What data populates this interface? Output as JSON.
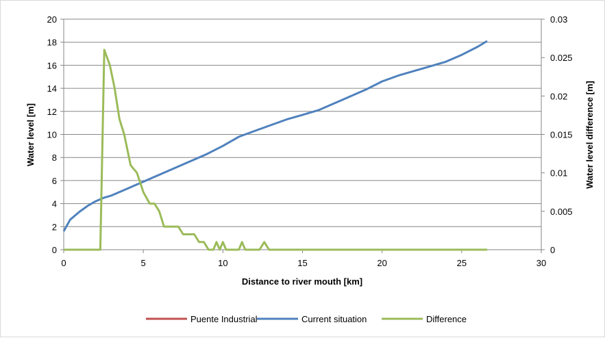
{
  "chart_data": {
    "type": "line",
    "title": "",
    "xlabel": "Distance to river mouth [km]",
    "ylabel": "Water level [m]",
    "y2label": "Water level difference [m]",
    "xlim": [
      0,
      30
    ],
    "ylim": [
      0,
      20
    ],
    "y2lim": [
      0,
      0.03
    ],
    "x_ticks": [
      0,
      5,
      10,
      15,
      20,
      25,
      30
    ],
    "y_ticks": [
      0,
      2,
      4,
      6,
      8,
      10,
      12,
      14,
      16,
      18,
      20
    ],
    "y2_ticks": [
      "0",
      "0.005",
      "0.01",
      "0.015",
      "0.02",
      "0.025",
      "0.03"
    ],
    "grid": "horizontal",
    "legend_position": "bottom",
    "series": [
      {
        "name": "Puente Industrial",
        "color": "#c0504d",
        "axis": "left",
        "x": [],
        "y": []
      },
      {
        "name": "Current situation",
        "color": "#4f81bd",
        "axis": "left",
        "x": [
          0,
          0.4,
          1,
          1.5,
          2,
          2.5,
          3,
          3.5,
          4,
          4.5,
          5,
          5.5,
          6,
          7,
          8,
          9,
          10,
          11,
          12,
          13,
          14,
          15,
          16,
          17,
          18,
          19,
          20,
          21,
          22,
          23,
          24,
          25,
          26,
          26.6
        ],
        "y": [
          1.6,
          2.6,
          3.3,
          3.8,
          4.2,
          4.5,
          4.7,
          5.0,
          5.3,
          5.6,
          5.9,
          6.2,
          6.5,
          7.1,
          7.7,
          8.3,
          9.0,
          9.8,
          10.3,
          10.8,
          11.3,
          11.7,
          12.1,
          12.7,
          13.3,
          13.9,
          14.6,
          15.1,
          15.5,
          15.9,
          16.3,
          16.9,
          17.6,
          18.1
        ]
      },
      {
        "name": "Difference",
        "color": "#9bbb59",
        "axis": "right",
        "x": [
          0,
          2.3,
          2.55,
          2.9,
          3.2,
          3.5,
          3.8,
          4.2,
          4.6,
          5.0,
          5.4,
          5.7,
          6.0,
          6.3,
          6.6,
          7.2,
          7.5,
          8.2,
          8.5,
          8.8,
          9.1,
          9.4,
          9.6,
          9.8,
          10.0,
          10.2,
          10.5,
          10.7,
          11.0,
          11.2,
          11.4,
          12.3,
          12.6,
          12.9,
          13.2,
          26.6
        ],
        "y": [
          0,
          0,
          0.026,
          0.024,
          0.021,
          0.017,
          0.015,
          0.011,
          0.01,
          0.0075,
          0.006,
          0.006,
          0.005,
          0.003,
          0.003,
          0.003,
          0.002,
          0.002,
          0.001,
          0.001,
          0,
          0,
          0.001,
          0,
          0.001,
          0,
          0,
          0,
          0,
          0.001,
          0,
          0,
          0.001,
          0,
          0,
          0
        ]
      }
    ]
  }
}
